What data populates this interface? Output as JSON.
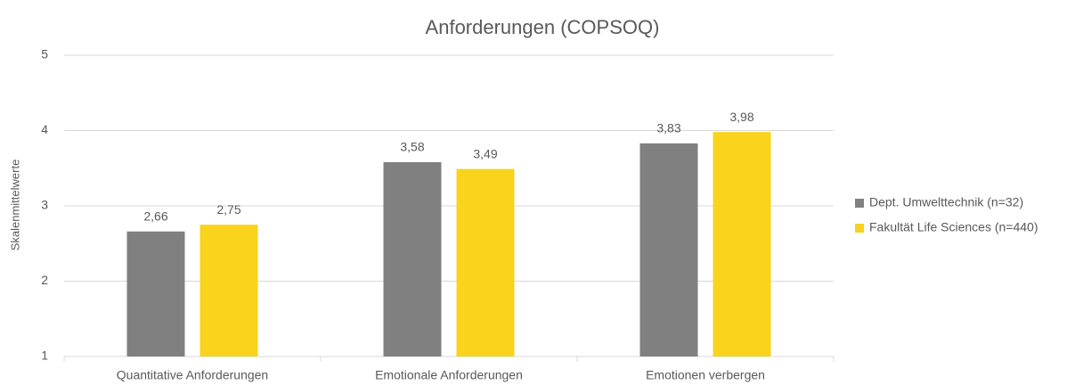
{
  "chart_data": {
    "type": "bar",
    "title": "Anforderungen (COPSOQ)",
    "y_label": "Skalenmittelwerte",
    "categories": [
      "Quantitative Anforderungen",
      "Emotionale Anforderungen",
      "Emotionen verbergen"
    ],
    "series": [
      {
        "name": "Dept. Umwelttechnik (n=32)",
        "color": "#808080",
        "values": [
          2.66,
          3.58,
          3.83
        ],
        "value_labels": [
          "2,66",
          "3,58",
          "3,83"
        ]
      },
      {
        "name": "Fakultät Life Sciences (n=440)",
        "color": "#f9d31c",
        "values": [
          2.75,
          3.49,
          3.98
        ],
        "value_labels": [
          "2,75",
          "3,49",
          "3,98"
        ]
      }
    ],
    "ylim": [
      1,
      5
    ],
    "yticks": [
      1,
      2,
      3,
      4,
      5
    ],
    "grid": true,
    "legend": "right"
  }
}
